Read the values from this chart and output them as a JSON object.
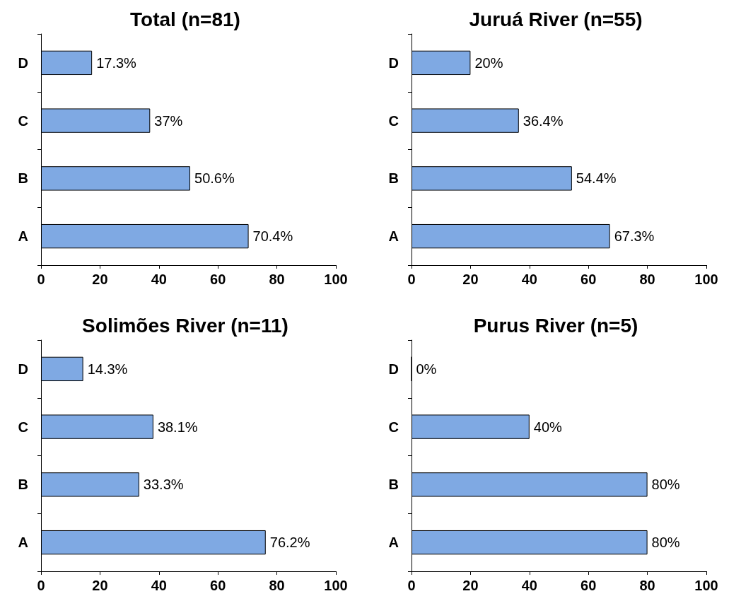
{
  "chart_data": [
    {
      "type": "bar",
      "orientation": "horizontal",
      "title": "Total (n=81)",
      "categories": [
        "D",
        "C",
        "B",
        "A"
      ],
      "values": [
        17.3,
        37,
        50.6,
        70.4
      ],
      "value_labels": [
        "17.3%",
        "37%",
        "50.6%",
        "70.4%"
      ],
      "color": "#7fa9e3",
      "xlim": [
        0,
        100
      ],
      "xticks": [
        0,
        20,
        40,
        60,
        80,
        100
      ]
    },
    {
      "type": "bar",
      "orientation": "horizontal",
      "title": "Juruá River (n=55)",
      "categories": [
        "D",
        "C",
        "B",
        "A"
      ],
      "values": [
        20,
        36.4,
        54.4,
        67.3
      ],
      "value_labels": [
        "20%",
        "36.4%",
        "54.4%",
        "67.3%"
      ],
      "color": "#7fa9e3",
      "xlim": [
        0,
        100
      ],
      "xticks": [
        0,
        20,
        40,
        60,
        80,
        100
      ]
    },
    {
      "type": "bar",
      "orientation": "horizontal",
      "title": "Solimões River (n=11)",
      "categories": [
        "D",
        "C",
        "B",
        "A"
      ],
      "values": [
        14.3,
        38.1,
        33.3,
        76.2
      ],
      "value_labels": [
        "14.3%",
        "38.1%",
        "33.3%",
        "76.2%"
      ],
      "color": "#7fa9e3",
      "xlim": [
        0,
        100
      ],
      "xticks": [
        0,
        20,
        40,
        60,
        80,
        100
      ]
    },
    {
      "type": "bar",
      "orientation": "horizontal",
      "title": "Purus River (n=5)",
      "categories": [
        "D",
        "C",
        "B",
        "A"
      ],
      "values": [
        0,
        40,
        80,
        80
      ],
      "value_labels": [
        "0%",
        "40%",
        "80%",
        "80%"
      ],
      "color": "#7fa9e3",
      "xlim": [
        0,
        100
      ],
      "xticks": [
        0,
        20,
        40,
        60,
        80,
        100
      ]
    }
  ]
}
